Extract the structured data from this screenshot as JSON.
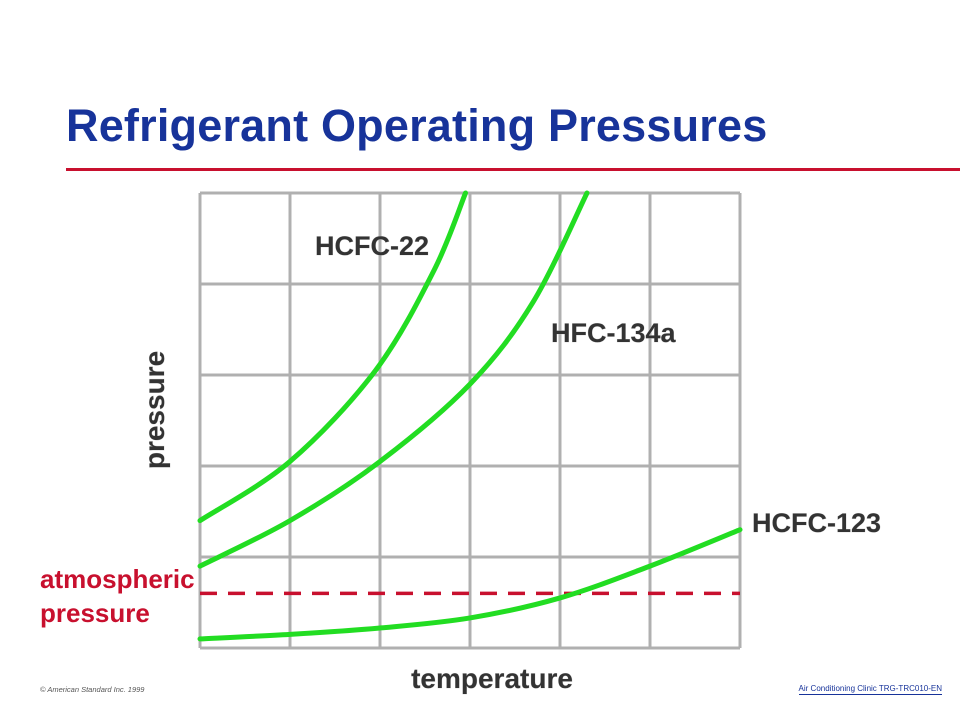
{
  "slide": {
    "title": "Refrigerant Operating Pressures",
    "footer_left": "© American Standard Inc. 1999",
    "footer_right": "Air Conditioning Clinic TRG-TRC010-EN"
  },
  "colors": {
    "title": "#17339a",
    "rule": "#c8102e",
    "curve": "#22dd22",
    "grid": "#b0b0b0",
    "atmospheric": "#c8102e"
  },
  "chart_data": {
    "type": "line",
    "title": "",
    "xlabel": "temperature",
    "ylabel": "pressure",
    "xlim": [
      0,
      6
    ],
    "ylim": [
      0,
      5
    ],
    "grid": true,
    "series": [
      {
        "name": "HCFC-22",
        "x": [
          0,
          1,
          1.95,
          2.6,
          2.95
        ],
        "y": [
          1.4,
          2.05,
          3.05,
          4.15,
          5.0
        ]
      },
      {
        "name": "HFC-134a",
        "x": [
          0,
          1,
          2,
          3.0,
          3.7,
          4.3
        ],
        "y": [
          0.9,
          1.4,
          2.05,
          2.9,
          3.8,
          5.0
        ]
      },
      {
        "name": "HCFC-123",
        "x": [
          0,
          1,
          2,
          3,
          4,
          5,
          6
        ],
        "y": [
          0.1,
          0.15,
          0.22,
          0.33,
          0.55,
          0.9,
          1.3
        ]
      }
    ],
    "reference_line": {
      "label_line1": "atmospheric",
      "label_line2": "pressure",
      "y": 0.6
    }
  }
}
